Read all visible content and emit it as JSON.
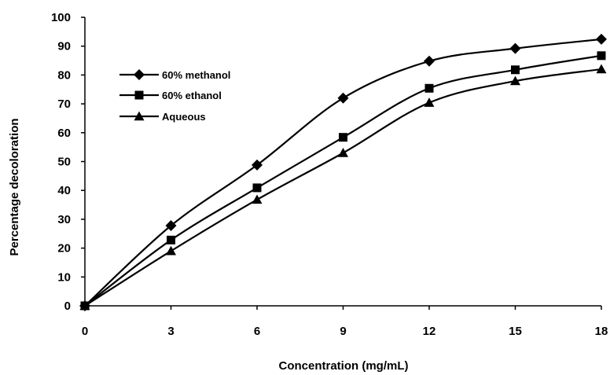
{
  "chart_data": {
    "type": "line",
    "title": "",
    "xlabel": "Concentration (mg/mL)",
    "ylabel": "Percentage decoloration",
    "x": [
      0,
      3,
      6,
      9,
      12,
      15,
      18
    ],
    "xlim": [
      0,
      18
    ],
    "ylim": [
      0,
      100
    ],
    "xticks": [
      "0",
      "3",
      "6",
      "9",
      "12",
      "15",
      "18"
    ],
    "yticks": [
      "0",
      "10",
      "20",
      "30",
      "40",
      "50",
      "60",
      "70",
      "80",
      "90",
      "100"
    ],
    "grid": false,
    "smoothed": true,
    "legend_position": "top-left",
    "series": [
      {
        "name": "60% methanol",
        "marker": "diamond",
        "values": [
          0,
          27.8,
          48.8,
          72.0,
          84.8,
          89.2,
          92.4
        ]
      },
      {
        "name": "60% ethanol",
        "marker": "square",
        "values": [
          0,
          22.8,
          40.9,
          58.4,
          75.4,
          81.8,
          86.7
        ]
      },
      {
        "name": "Aqueous",
        "marker": "triangle",
        "values": [
          0,
          19.0,
          36.8,
          53.0,
          70.4,
          77.9,
          82.0
        ]
      }
    ]
  }
}
